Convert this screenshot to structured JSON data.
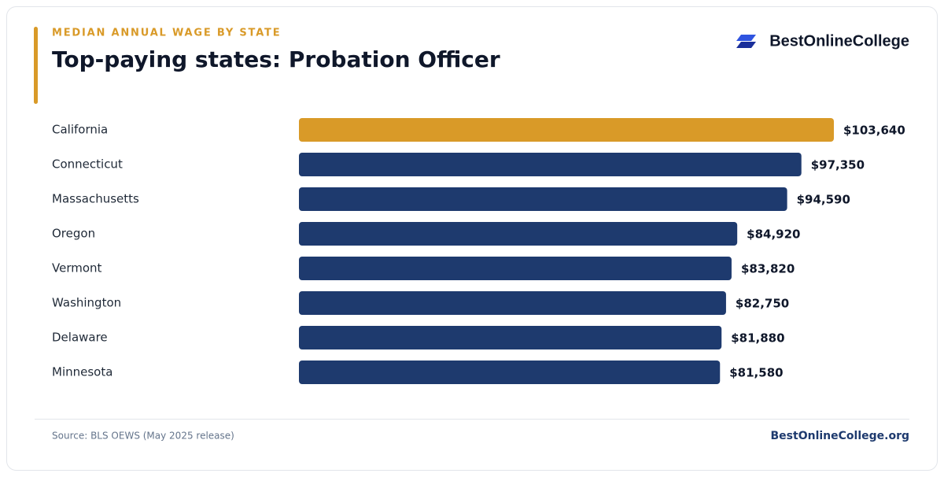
{
  "chart_data": {
    "type": "bar",
    "orientation": "horizontal",
    "subtitle": "MEDIAN ANNUAL WAGE BY STATE",
    "title": "Top-paying states: Probation Officer",
    "brand": "BestOnlineCollege",
    "source": "Source: BLS OEWS (May 2025 release)",
    "footer_link": "BestOnlineCollege.org",
    "categories": [
      "California",
      "Connecticut",
      "Massachusetts",
      "Oregon",
      "Vermont",
      "Washington",
      "Delaware",
      "Minnesota"
    ],
    "values": [
      103640,
      97350,
      94590,
      84920,
      83820,
      82750,
      81880,
      81580
    ],
    "value_labels": [
      "$103,640",
      "$97,350",
      "$94,590",
      "$84,920",
      "$83,820",
      "$82,750",
      "$81,880",
      "$81,580"
    ],
    "colors": [
      "#d99a28",
      "#1e3a6e",
      "#1e3a6e",
      "#1e3a6e",
      "#1e3a6e",
      "#1e3a6e",
      "#1e3a6e",
      "#1e3a6e"
    ]
  }
}
